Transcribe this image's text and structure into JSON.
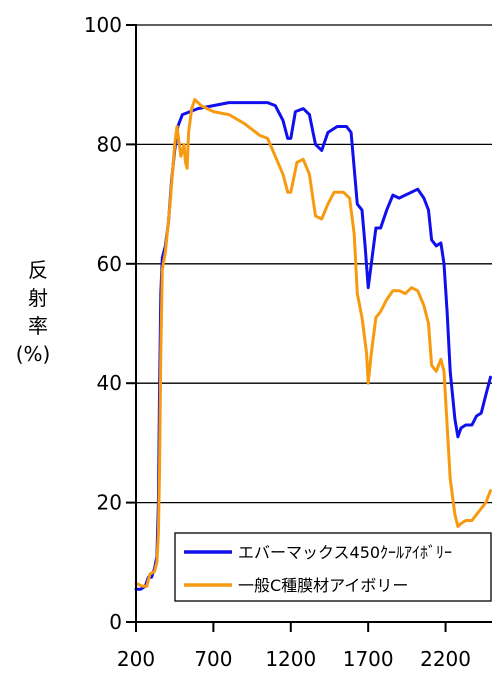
{
  "chart_data": {
    "type": "line",
    "ylabel_lines": [
      "反",
      "射",
      "率",
      "(%)"
    ],
    "xlabel": "",
    "title": "",
    "xlim": [
      200,
      2500
    ],
    "ylim": [
      0,
      100
    ],
    "x_ticks": [
      200,
      700,
      1200,
      1700,
      2200
    ],
    "y_ticks": [
      0,
      20,
      40,
      60,
      80,
      100
    ],
    "grid": "horizontal",
    "legend_position": "bottom-right",
    "series": [
      {
        "name": "エバーマックス450ｸｰﾙｱｲﾎﾞﾘｰ",
        "color": "#1010ee",
        "points": [
          [
            200,
            5.5
          ],
          [
            230,
            5.5
          ],
          [
            260,
            6.0
          ],
          [
            280,
            7.5
          ],
          [
            300,
            7.5
          ],
          [
            320,
            9.0
          ],
          [
            335,
            11.0
          ],
          [
            345,
            20.0
          ],
          [
            352,
            38.0
          ],
          [
            360,
            55.0
          ],
          [
            370,
            61.0
          ],
          [
            390,
            63.0
          ],
          [
            410,
            67.0
          ],
          [
            430,
            74.0
          ],
          [
            450,
            79.0
          ],
          [
            470,
            83.0
          ],
          [
            500,
            85.0
          ],
          [
            550,
            85.5
          ],
          [
            600,
            86.0
          ],
          [
            700,
            86.5
          ],
          [
            800,
            87.0
          ],
          [
            900,
            87.0
          ],
          [
            1000,
            87.0
          ],
          [
            1050,
            87.0
          ],
          [
            1100,
            86.5
          ],
          [
            1150,
            84.0
          ],
          [
            1180,
            81.0
          ],
          [
            1200,
            81.0
          ],
          [
            1230,
            85.5
          ],
          [
            1280,
            86.0
          ],
          [
            1320,
            85.0
          ],
          [
            1360,
            80.0
          ],
          [
            1400,
            79.0
          ],
          [
            1440,
            82.0
          ],
          [
            1500,
            83.0
          ],
          [
            1560,
            83.0
          ],
          [
            1590,
            82.0
          ],
          [
            1610,
            76.0
          ],
          [
            1630,
            70.0
          ],
          [
            1660,
            69.0
          ],
          [
            1680,
            63.0
          ],
          [
            1700,
            56.0
          ],
          [
            1720,
            60.0
          ],
          [
            1750,
            66.0
          ],
          [
            1780,
            66.0
          ],
          [
            1820,
            69.0
          ],
          [
            1860,
            71.5
          ],
          [
            1900,
            71.0
          ],
          [
            1940,
            71.5
          ],
          [
            1980,
            72.0
          ],
          [
            2020,
            72.5
          ],
          [
            2060,
            71.0
          ],
          [
            2090,
            69.0
          ],
          [
            2110,
            64.0
          ],
          [
            2140,
            63.0
          ],
          [
            2170,
            63.5
          ],
          [
            2190,
            60.0
          ],
          [
            2210,
            52.0
          ],
          [
            2230,
            42.0
          ],
          [
            2260,
            34.0
          ],
          [
            2280,
            31.0
          ],
          [
            2300,
            32.5
          ],
          [
            2330,
            33.0
          ],
          [
            2370,
            33.0
          ],
          [
            2400,
            34.5
          ],
          [
            2430,
            35.0
          ],
          [
            2460,
            38.0
          ],
          [
            2490,
            41.0
          ]
        ]
      },
      {
        "name": "一般C種膜材アイボリー",
        "color": "#f89a10",
        "points": [
          [
            200,
            6.5
          ],
          [
            240,
            6.0
          ],
          [
            270,
            6.0
          ],
          [
            290,
            8.0
          ],
          [
            320,
            8.5
          ],
          [
            335,
            10.0
          ],
          [
            345,
            15.0
          ],
          [
            352,
            25.0
          ],
          [
            360,
            45.0
          ],
          [
            370,
            59.0
          ],
          [
            390,
            62.0
          ],
          [
            420,
            70.0
          ],
          [
            450,
            80.0
          ],
          [
            465,
            83.0
          ],
          [
            490,
            78.0
          ],
          [
            510,
            80.0
          ],
          [
            520,
            77.0
          ],
          [
            530,
            76.0
          ],
          [
            540,
            82.0
          ],
          [
            560,
            86.0
          ],
          [
            580,
            87.5
          ],
          [
            620,
            86.5
          ],
          [
            700,
            85.5
          ],
          [
            800,
            85.0
          ],
          [
            900,
            83.5
          ],
          [
            1000,
            81.5
          ],
          [
            1050,
            81.0
          ],
          [
            1100,
            78.0
          ],
          [
            1150,
            75.0
          ],
          [
            1180,
            72.0
          ],
          [
            1200,
            72.0
          ],
          [
            1240,
            77.0
          ],
          [
            1280,
            77.5
          ],
          [
            1320,
            75.0
          ],
          [
            1360,
            68.0
          ],
          [
            1400,
            67.5
          ],
          [
            1440,
            70.0
          ],
          [
            1480,
            72.0
          ],
          [
            1540,
            72.0
          ],
          [
            1580,
            71.0
          ],
          [
            1610,
            65.0
          ],
          [
            1630,
            55.0
          ],
          [
            1660,
            51.0
          ],
          [
            1690,
            45.0
          ],
          [
            1700,
            40.0
          ],
          [
            1720,
            45.0
          ],
          [
            1750,
            51.0
          ],
          [
            1780,
            52.0
          ],
          [
            1820,
            54.0
          ],
          [
            1860,
            55.5
          ],
          [
            1900,
            55.5
          ],
          [
            1940,
            55.0
          ],
          [
            1980,
            56.0
          ],
          [
            2020,
            55.5
          ],
          [
            2060,
            53.0
          ],
          [
            2090,
            50.0
          ],
          [
            2110,
            43.0
          ],
          [
            2140,
            42.0
          ],
          [
            2170,
            44.0
          ],
          [
            2190,
            42.0
          ],
          [
            2210,
            33.0
          ],
          [
            2230,
            24.0
          ],
          [
            2260,
            18.0
          ],
          [
            2280,
            16.0
          ],
          [
            2300,
            16.5
          ],
          [
            2330,
            17.0
          ],
          [
            2370,
            17.0
          ],
          [
            2400,
            18.0
          ],
          [
            2430,
            19.0
          ],
          [
            2460,
            20.0
          ],
          [
            2490,
            22.0
          ]
        ]
      }
    ]
  }
}
